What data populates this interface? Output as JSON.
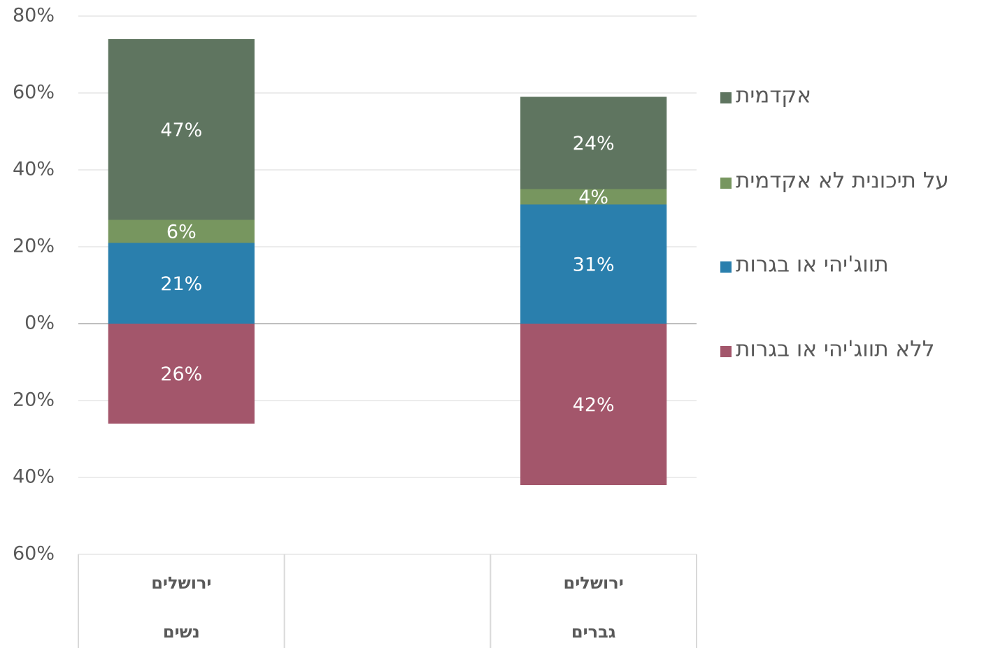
{
  "chart_data": {
    "type": "bar",
    "stacked": true,
    "categories": [
      [
        "ירושלים",
        "נשים"
      ],
      null,
      [
        "ירושלים",
        "גברים"
      ]
    ],
    "series": [
      {
        "name": "אקדמית",
        "color": "#5f7560",
        "values": [
          47,
          null,
          24
        ],
        "value_labels": [
          "47%",
          null,
          "24%"
        ]
      },
      {
        "name": "על תיכונית לא אקדמית",
        "color": "#77965f",
        "values": [
          6,
          null,
          4
        ],
        "value_labels": [
          "6%",
          null,
          "4%"
        ]
      },
      {
        "name": "תווג'יהי או בגרות",
        "color": "#2a7fad",
        "values": [
          21,
          null,
          31
        ],
        "value_labels": [
          "21%",
          null,
          "31%"
        ]
      },
      {
        "name": "ללא תווג'יהי או בגרות",
        "color": "#a3566b",
        "values": [
          -26,
          null,
          -42
        ],
        "value_labels": [
          "26%",
          null,
          "42%"
        ]
      }
    ],
    "ylim": [
      -60,
      80
    ],
    "yticks": [
      {
        "value": -60,
        "label": "60%"
      },
      {
        "value": -40,
        "label": "40%"
      },
      {
        "value": -20,
        "label": "20%"
      },
      {
        "value": 0,
        "label": "0%"
      },
      {
        "value": 20,
        "label": "20%"
      },
      {
        "value": 40,
        "label": "40%"
      },
      {
        "value": 60,
        "label": "60%"
      },
      {
        "value": 80,
        "label": "80%"
      }
    ],
    "grid": true,
    "legend": "right"
  }
}
